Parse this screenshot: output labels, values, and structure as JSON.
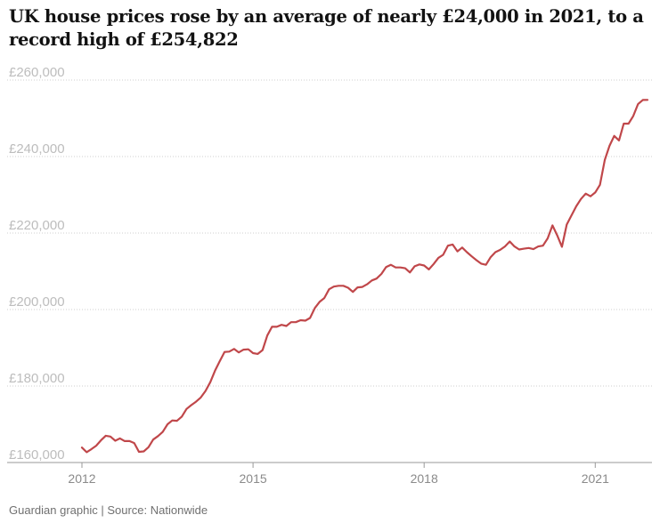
{
  "title": "UK house prices rose by an average of nearly £24,000 in 2021, to a record high of £254,822",
  "source": "Guardian graphic | Source: Nationwide",
  "colors": {
    "line": "#c0474a",
    "grid": "#cfcfcf",
    "axis": "#bdbdbd"
  },
  "chart_data": {
    "type": "line",
    "title": "UK house prices rose by an average of nearly £24,000 in 2021, to a record high of £254,822",
    "ylim": [
      160000,
      260000
    ],
    "yticks": [
      160000,
      180000,
      200000,
      220000,
      240000,
      260000
    ],
    "ytick_labels": [
      "£160,000",
      "£180,000",
      "£200,000",
      "£220,000",
      "£240,000",
      "£260,000"
    ],
    "xlim": [
      "2012-01",
      "2021-12"
    ],
    "xticks": [
      "2012-01",
      "2015-01",
      "2018-01",
      "2021-01"
    ],
    "xtick_labels": [
      "2012",
      "2015",
      "2018",
      "2021"
    ],
    "grid": "horizontal dotted",
    "series": [
      {
        "x": [
          "2012-01",
          "2012-02",
          "2012-03",
          "2012-04",
          "2012-05",
          "2012-06",
          "2012-07",
          "2012-08",
          "2012-09",
          "2012-10",
          "2012-11",
          "2012-12",
          "2013-01",
          "2013-02",
          "2013-03",
          "2013-04",
          "2013-05",
          "2013-06",
          "2013-07",
          "2013-08",
          "2013-09",
          "2013-10",
          "2013-11",
          "2013-12",
          "2014-01",
          "2014-02",
          "2014-03",
          "2014-04",
          "2014-05",
          "2014-06",
          "2014-07",
          "2014-08",
          "2014-09",
          "2014-10",
          "2014-11",
          "2014-12",
          "2015-01",
          "2015-02",
          "2015-03",
          "2015-04",
          "2015-05",
          "2015-06",
          "2015-07",
          "2015-08",
          "2015-09",
          "2015-10",
          "2015-11",
          "2015-12",
          "2016-01",
          "2016-02",
          "2016-03",
          "2016-04",
          "2016-05",
          "2016-06",
          "2016-07",
          "2016-08",
          "2016-09",
          "2016-10",
          "2016-11",
          "2016-12",
          "2017-01",
          "2017-02",
          "2017-03",
          "2017-04",
          "2017-05",
          "2017-06",
          "2017-07",
          "2017-08",
          "2017-09",
          "2017-10",
          "2017-11",
          "2017-12",
          "2018-01",
          "2018-02",
          "2018-03",
          "2018-04",
          "2018-05",
          "2018-06",
          "2018-07",
          "2018-08",
          "2018-09",
          "2018-10",
          "2018-11",
          "2018-12",
          "2019-01",
          "2019-02",
          "2019-03",
          "2019-04",
          "2019-05",
          "2019-06",
          "2019-07",
          "2019-08",
          "2019-09",
          "2019-10",
          "2019-11",
          "2019-12",
          "2020-01",
          "2020-02",
          "2020-03",
          "2020-04",
          "2020-05",
          "2020-06",
          "2020-07",
          "2020-08",
          "2020-09",
          "2020-10",
          "2020-11",
          "2020-12",
          "2021-01",
          "2021-02",
          "2021-03",
          "2021-04",
          "2021-05",
          "2021-06",
          "2021-07",
          "2021-08",
          "2021-09",
          "2021-10",
          "2021-11",
          "2021-12"
        ],
        "values": [
          163900,
          162700,
          163500,
          164400,
          165800,
          167000,
          166800,
          165700,
          166300,
          165600,
          165600,
          165100,
          162800,
          162900,
          164000,
          166000,
          166900,
          168000,
          170000,
          171000,
          170900,
          172000,
          174000,
          175000,
          175900,
          177000,
          178700,
          181000,
          184000,
          186500,
          188900,
          189000,
          189700,
          188800,
          189500,
          189600,
          188600,
          188400,
          189400,
          193200,
          195500,
          195500,
          196000,
          195700,
          196700,
          196700,
          197200,
          197100,
          197800,
          200400,
          202000,
          203000,
          205300,
          206000,
          206200,
          206200,
          205700,
          204600,
          205800,
          205900,
          206600,
          207600,
          208100,
          209300,
          211100,
          211700,
          211000,
          211000,
          210800,
          209700,
          211300,
          211800,
          211500,
          210500,
          211900,
          213500,
          214300,
          216700,
          217000,
          215200,
          216200,
          215000,
          213900,
          212900,
          212000,
          211700,
          213700,
          215000,
          215600,
          216500,
          217800,
          216500,
          215700,
          215900,
          216100,
          215800,
          216500,
          216700,
          218600,
          222000,
          219400,
          216400,
          222200,
          224600,
          227000,
          228900,
          230300,
          229600,
          230600,
          232600,
          239100,
          242800,
          245400,
          244200,
          248600,
          248600,
          250600,
          253700,
          254800,
          254822
        ]
      }
    ]
  }
}
